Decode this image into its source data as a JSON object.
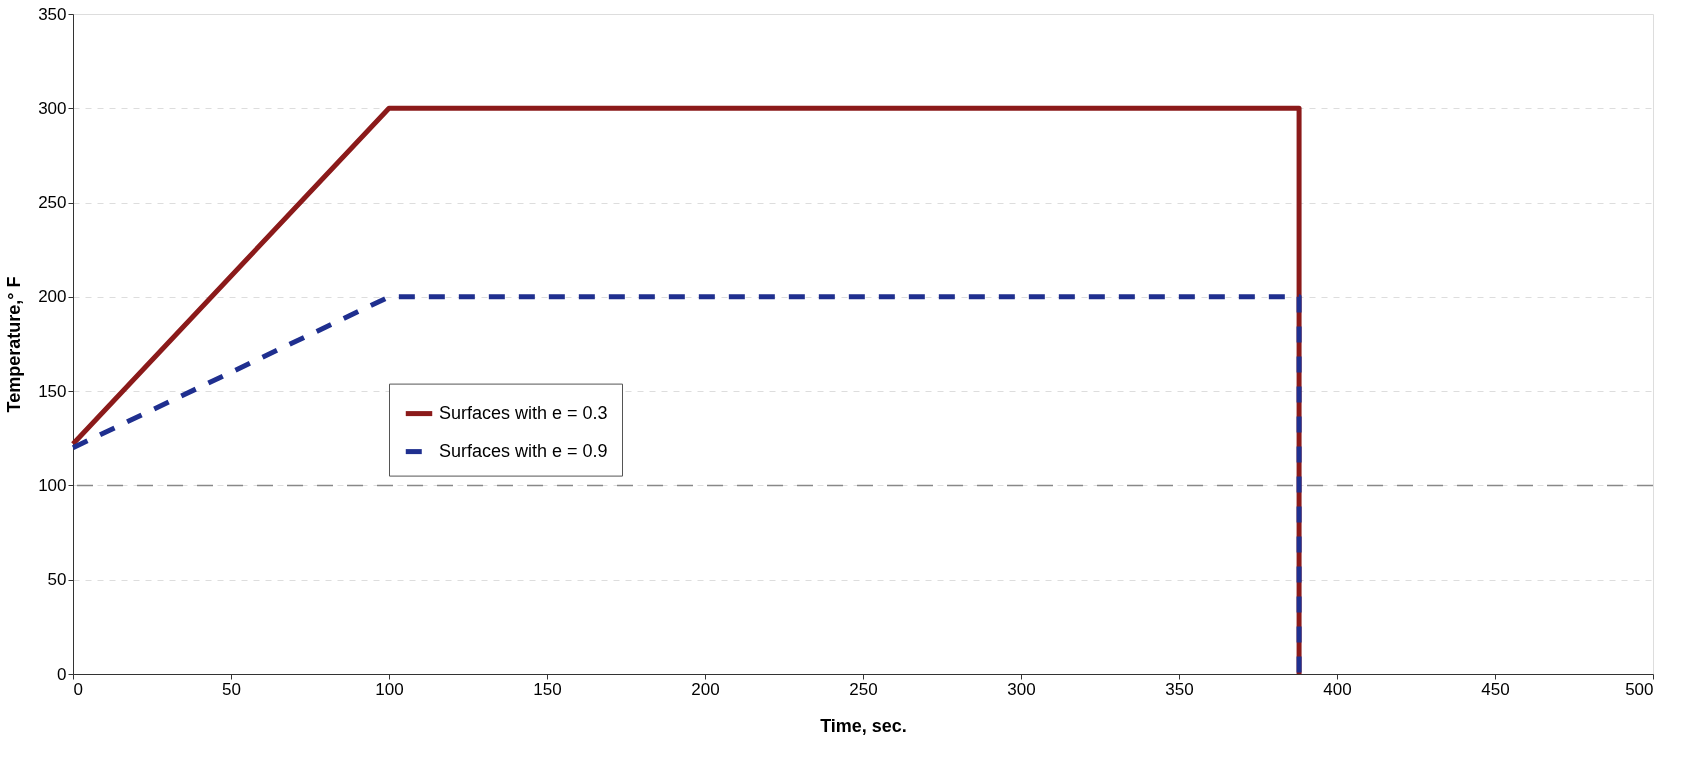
{
  "chart_data": {
    "type": "line",
    "xlabel": "Time,  sec.",
    "ylabel": "Temperature,° F",
    "series": [
      {
        "name": "Surfaces with e = 0.3",
        "color": "#8b1a1a",
        "line_style": "solid",
        "x": [
          0,
          100,
          388,
          388
        ],
        "values": [
          122,
          300,
          300,
          0
        ]
      },
      {
        "name": "Surfaces with e = 0.9",
        "color": "#1f2f8f",
        "line_style": "dashed",
        "x": [
          0,
          100,
          388,
          388
        ],
        "values": [
          120,
          200,
          200,
          0
        ]
      }
    ],
    "xlim": [
      0,
      500
    ],
    "xticks": [
      0,
      50,
      100,
      150,
      200,
      250,
      300,
      350,
      400,
      450,
      500
    ],
    "ylim": [
      0,
      350
    ],
    "yticks": [
      0,
      50,
      100,
      150,
      200,
      250,
      300,
      350
    ],
    "grid": "y",
    "legend": "center",
    "marker": "none",
    "ref_lines": [
      {
        "axis": "y",
        "value": 100,
        "color": "#888888",
        "line_style": "dashed"
      }
    ]
  }
}
